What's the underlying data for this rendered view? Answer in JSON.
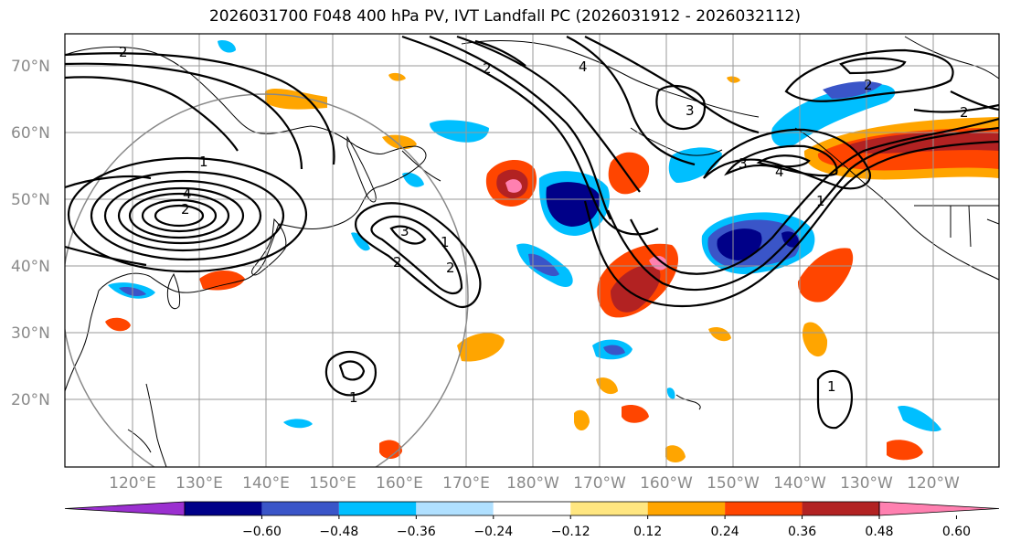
{
  "title": "2026031700 F048 400 hPa PV, IVT Landfall PC (2026031912 - 2026032112)",
  "lat_labels": [
    "70°N",
    "60°N",
    "50°N",
    "40°N",
    "30°N",
    "20°N"
  ],
  "lon_labels": [
    "120°E",
    "130°E",
    "140°E",
    "150°E",
    "160°E",
    "170°E",
    "180°W",
    "170°W",
    "160°W",
    "150°W",
    "140°W",
    "130°W",
    "120°W"
  ],
  "colorbar": {
    "ticks": [
      "−0.60",
      "−0.48",
      "−0.36",
      "−0.24",
      "−0.12",
      "0.12",
      "0.24",
      "0.36",
      "0.48",
      "0.60"
    ],
    "colors": [
      "#9b30d0",
      "#000088",
      "#3a55c8",
      "#00bfff",
      "#b0e0ff",
      "#ffffff",
      "#ffe680",
      "#ffa500",
      "#ff4500",
      "#b22222",
      "#ff80b0"
    ]
  },
  "contour_labels": [
    "2",
    "1",
    "2",
    "4",
    "4",
    "2",
    "3",
    "4",
    "1",
    "3",
    "2",
    "2",
    "3",
    "2",
    "1",
    "2",
    "1",
    "1"
  ],
  "colors": {
    "grid": "#999999",
    "coast": "#000000",
    "contour": "#000000"
  }
}
